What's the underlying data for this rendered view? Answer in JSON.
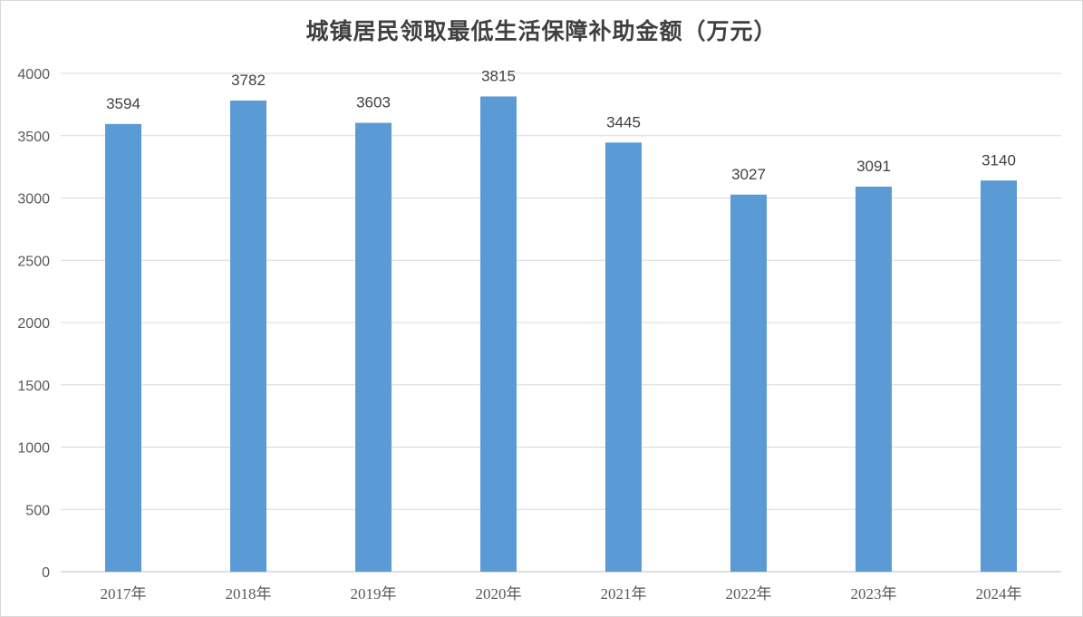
{
  "chart_data": {
    "type": "bar",
    "title": "城镇居民领取最低生活保障补助金额（万元）",
    "categories": [
      "2017年",
      "2018年",
      "2019年",
      "2020年",
      "2021年",
      "2022年",
      "2023年",
      "2024年"
    ],
    "values": [
      3594,
      3782,
      3603,
      3815,
      3445,
      3027,
      3091,
      3140
    ],
    "ylim": [
      0,
      4000
    ],
    "yticks": [
      "0",
      "500",
      "1000",
      "1500",
      "2000",
      "2500",
      "3000",
      "3500",
      "4000"
    ],
    "grid": true,
    "legend": "none",
    "data_labels": true,
    "colors": {
      "bar": "#5B9BD5",
      "grid": "#D9D9D9",
      "axis": "#BFBFBF"
    }
  }
}
